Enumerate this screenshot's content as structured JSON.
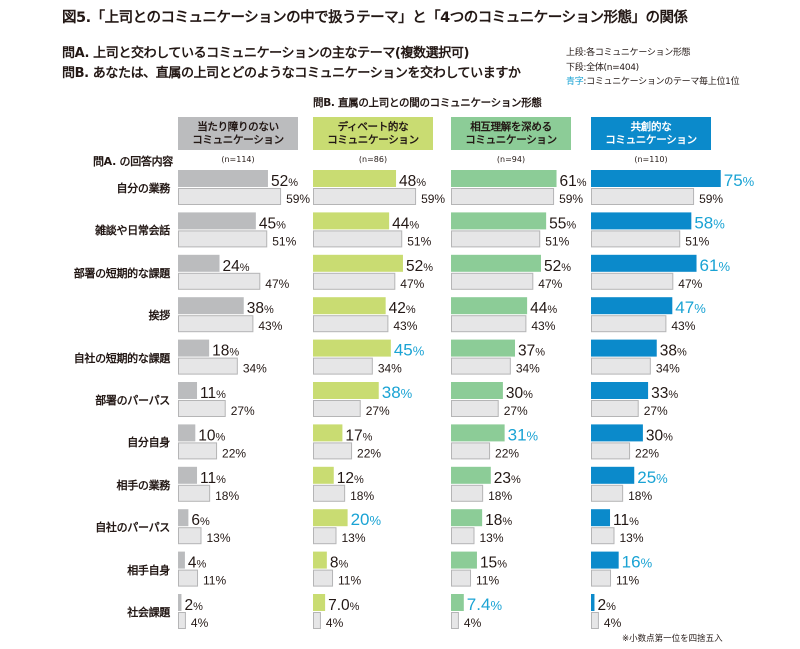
{
  "title": "図5.「上司とのコミュニケーションの中で扱うテーマ」と「4つのコミュニケーション形態」の関係",
  "question_a": "問A. 上司と交わしているコミュニケーションの主なテーマ(複数選択可)",
  "question_b": "問B. あなたは、直属の上司とどのようなコミュニケーションを交わしていますか",
  "legend": {
    "upper": "上段:各コミュニケーション形態",
    "lower": "下段:全体(n=404)",
    "blue_key": "青字",
    "blue_desc": ":コミュニケーションのテーマ毎上位1位"
  },
  "axis_b_label": "問B. 直属の上司との間のコミュニケーション形態",
  "axis_a_label": "問A. の回答内容",
  "footnote": "※小数点第一位を四捨五入",
  "colors": {
    "gray": "#bbbcbe",
    "lime": "#c9dc72",
    "green": "#8ccc97",
    "blue": "#0b8acb",
    "overall": "#e6e6e7",
    "highlight_text": "#1aa3d4"
  },
  "chart_data": {
    "type": "bar",
    "orientation": "horizontal",
    "title": "図5.「上司とのコミュニケーションの中で扱うテーマ」と「4つのコミュニケーション形態」の関係",
    "xlabel": "問B. 直属の上司との間のコミュニケーション形態",
    "ylabel": "問A. の回答内容",
    "unit": "%",
    "categories": [
      "自分の業務",
      "雑談や日常会話",
      "部署の短期的な課題",
      "挨拶",
      "自社の短期的な課題",
      "部署のパーパス",
      "自分自身",
      "相手の業務",
      "自社のパーパス",
      "相手自身",
      "社会課題"
    ],
    "overall": {
      "name": "全体(n=404)",
      "values": [
        59,
        51,
        47,
        43,
        34,
        27,
        22,
        18,
        13,
        11,
        4
      ],
      "labels": [
        "59%",
        "51%",
        "47%",
        "43%",
        "34%",
        "27%",
        "22%",
        "18%",
        "13%",
        "11%",
        "4%"
      ]
    },
    "series": [
      {
        "name": "当たり障りのない\nコミュニケーション",
        "line1": "当たり障りのない",
        "line2": "コミュニケーション",
        "n": "(n=114)",
        "color_key": "gray",
        "values": [
          52,
          45,
          24,
          38,
          18,
          11,
          10,
          11,
          6,
          4,
          2
        ],
        "labels": [
          "52",
          "45",
          "24",
          "38",
          "18",
          "11",
          "10",
          "11",
          "6",
          "4",
          "2"
        ],
        "top": [
          false,
          false,
          false,
          false,
          false,
          false,
          false,
          false,
          false,
          false,
          false
        ]
      },
      {
        "name": "ディベート的な\nコミュニケーション",
        "line1": "ディベート的な",
        "line2": "コミュニケーション",
        "n": "(n=86)",
        "color_key": "lime",
        "values": [
          48,
          44,
          52,
          42,
          45,
          38,
          17,
          12,
          20,
          8,
          7.0
        ],
        "labels": [
          "48",
          "44",
          "52",
          "42",
          "45",
          "38",
          "17",
          "12",
          "20",
          "8",
          "7.0"
        ],
        "top": [
          false,
          false,
          false,
          false,
          true,
          true,
          false,
          false,
          true,
          false,
          false
        ]
      },
      {
        "name": "相互理解を深める\nコミュニケーション",
        "line1": "相互理解を深める",
        "line2": "コミュニケーション",
        "n": "(n=94)",
        "color_key": "green",
        "values": [
          61,
          55,
          52,
          44,
          37,
          30,
          31,
          23,
          18,
          15,
          7.4
        ],
        "labels": [
          "61",
          "55",
          "52",
          "44",
          "37",
          "30",
          "31",
          "23",
          "18",
          "15",
          "7.4"
        ],
        "top": [
          false,
          false,
          false,
          false,
          false,
          false,
          true,
          false,
          false,
          false,
          true
        ]
      },
      {
        "name": "共創的な\nコミュニケーション",
        "line1": "共創的な",
        "line2": "コミュニケーション",
        "n": "(n=110)",
        "color_key": "blue",
        "values": [
          75,
          58,
          61,
          47,
          38,
          33,
          30,
          25,
          11,
          16,
          2
        ],
        "labels": [
          "75",
          "58",
          "61",
          "47",
          "38",
          "33",
          "30",
          "25",
          "11",
          "16",
          "2"
        ],
        "top": [
          true,
          true,
          true,
          true,
          false,
          false,
          false,
          true,
          false,
          true,
          false
        ]
      }
    ],
    "xlim": [
      0,
      100
    ],
    "grid": false,
    "legend": "top-right"
  }
}
